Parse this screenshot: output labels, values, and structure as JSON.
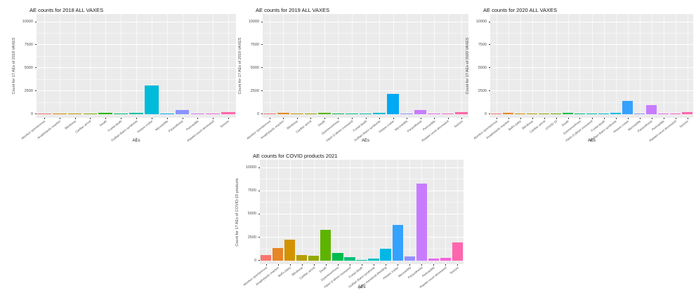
{
  "page": {
    "background": "#ffffff",
    "panel_background": "#EBEBEB",
    "gridline_color": "#FFFFFF"
  },
  "chart_data": [
    {
      "type": "bar",
      "title": "AE counts for 2018 ALL VAXES",
      "xlabel": "AEs",
      "ylabel": "Count for 17 AEs of 2018 VAXES",
      "ylim": [
        0,
        10000
      ],
      "yticks": [
        0,
        2500,
        5000,
        7500,
        10000
      ],
      "grid": true,
      "legend": "none",
      "categories": [
        "Abortion spontaneous",
        "Anaphylactic reaction",
        "Blindness",
        "Cardiac arrest",
        "Death",
        "Foetal death",
        "Guillain-Barre syndrome",
        "Herpes zoster",
        "Myocarditis",
        "Paraesthesia",
        "Pericarditis",
        "Platelet count decreased",
        "Seizure"
      ],
      "values": [
        40,
        120,
        40,
        25,
        180,
        25,
        150,
        3100,
        40,
        500,
        25,
        35,
        280
      ],
      "colors": [
        "#F8766D",
        "#E18A00",
        "#BE9C00",
        "#8CAB00",
        "#24B700",
        "#00BE70",
        "#00C1AB",
        "#00BBDA",
        "#00ACFC",
        "#8B93FF",
        "#D575FE",
        "#F962DD",
        "#FF65AC"
      ]
    },
    {
      "type": "bar",
      "title": "AE counts for 2019 ALL VAXES",
      "xlabel": "AEs",
      "ylabel": "Count for 17 AEs of 2019 VAXES",
      "ylim": [
        0,
        10000
      ],
      "yticks": [
        0,
        2500,
        5000,
        7500,
        10000
      ],
      "grid": true,
      "legend": "none",
      "categories": [
        "Abortion spontaneous",
        "Anaphylactic reaction",
        "Blindness",
        "Cardiac arrest",
        "Death",
        "Dysmenorrhoea",
        "Fibrin D-dimer increased",
        "Foetal death",
        "Guillain-Barre syndrome",
        "Herpes zoster",
        "Myocarditis",
        "Paraesthesia",
        "Pericarditis",
        "Platelet count decreased",
        "Seizure"
      ],
      "values": [
        40,
        140,
        90,
        30,
        170,
        20,
        15,
        25,
        140,
        2200,
        50,
        500,
        25,
        35,
        280
      ],
      "colors": [
        "#F8766D",
        "#E38900",
        "#C49A00",
        "#9CA700",
        "#5BB300",
        "#00BC51",
        "#00C087",
        "#00C0B4",
        "#00BAD8",
        "#00A9F4",
        "#8F91FF",
        "#C77CFF",
        "#EA6AF1",
        "#FD61D3",
        "#FF66A5"
      ]
    },
    {
      "type": "bar",
      "title": "AE counts for 2020 ALL VAXES",
      "xlabel": "AEs",
      "ylabel": "Count for 17 AEs of 2020 VAXES",
      "ylim": [
        0,
        10000
      ],
      "yticks": [
        0,
        2500,
        5000,
        7500,
        10000
      ],
      "grid": true,
      "legend": "none",
      "categories": [
        "Abortion spontaneous",
        "Anaphylactic reaction",
        "Bell's palsy",
        "Blindness",
        "Cardiac arrest",
        "COVID-19",
        "Death",
        "Dysmenorrhoea",
        "Fibrin D-dimer increased",
        "Foetal death",
        "Guillain-Barre syndrome",
        "Herpes zoster",
        "Myocarditis",
        "Paraesthesia",
        "Pericarditis",
        "Platelet count decreased",
        "Seizure"
      ],
      "values": [
        30,
        150,
        30,
        90,
        40,
        90,
        170,
        20,
        15,
        25,
        150,
        1500,
        40,
        1000,
        25,
        35,
        230
      ],
      "colors": [
        "#F8766D",
        "#E88526",
        "#D39200",
        "#B79F00",
        "#93AA00",
        "#5EB300",
        "#00BB4E",
        "#00BF7D",
        "#00C1A2",
        "#00BFC8",
        "#00B8E5",
        "#35A2FF",
        "#9590FF",
        "#C77CFF",
        "#E869F0",
        "#FB61D7",
        "#FF65AE"
      ]
    },
    {
      "type": "bar",
      "title": "AE counts for COVID products 2021",
      "xlabel": "AEs",
      "ylabel": "Count for 17 AEs of COVID-19 products",
      "ylim": [
        0,
        10000
      ],
      "yticks": [
        0,
        2500,
        5000,
        7500,
        10000
      ],
      "grid": true,
      "legend": "none",
      "categories": [
        "Abortion spontaneous",
        "Anaphylactic reaction",
        "Bell's palsy",
        "Blindness",
        "Cardiac arrest",
        "Death",
        "Dysmenorrhoea",
        "Fibrin D-dimer increased",
        "Foetal death",
        "Guillain-Barre syndrome",
        "Heavy menstrual bleeding",
        "Herpes zoster",
        "Myocarditis",
        "Paraesthesia",
        "Pericarditis",
        "Platelet count decreased",
        "Seizure"
      ],
      "values": [
        600,
        1400,
        2300,
        600,
        550,
        3300,
        850,
        400,
        70,
        280,
        1300,
        3900,
        500,
        8300,
        280,
        350,
        2000
      ],
      "colors": [
        "#F8766D",
        "#E88526",
        "#D39200",
        "#B79F00",
        "#93AA00",
        "#5EB300",
        "#00BB4E",
        "#00BF7D",
        "#00C1A2",
        "#00BFC8",
        "#00B8E5",
        "#35A2FF",
        "#9590FF",
        "#C77CFF",
        "#E869F0",
        "#FB61D7",
        "#FF65AE"
      ]
    }
  ]
}
